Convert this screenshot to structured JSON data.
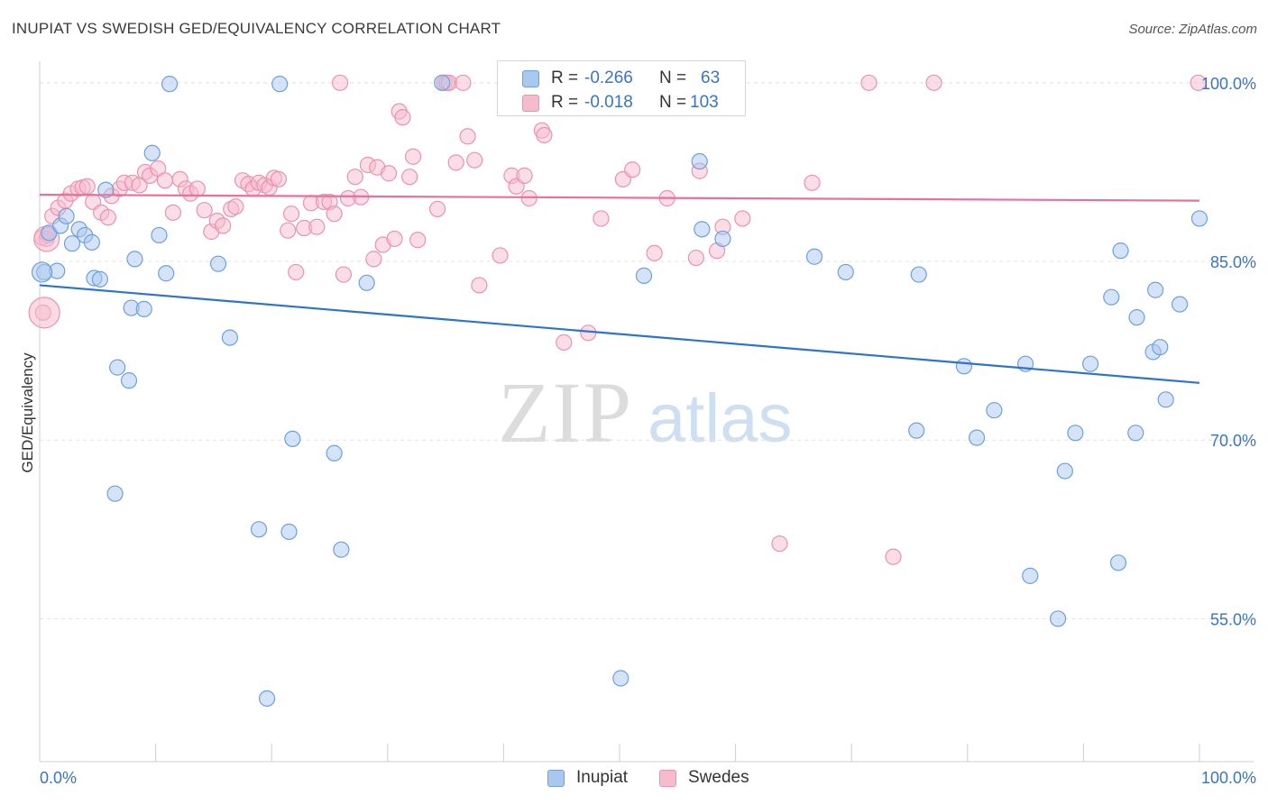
{
  "title": "INUPIAT VS SWEDISH GED/EQUIVALENCY CORRELATION CHART",
  "source": "Source: ZipAtlas.com",
  "watermark": {
    "zip": "ZIP",
    "atlas": "atlas"
  },
  "stats": {
    "r_label": "R =",
    "n_label": "N =",
    "rows": [
      {
        "series": "Inupiat",
        "r": "-0.266",
        "n": "63"
      },
      {
        "series": "Swedes",
        "r": "-0.018",
        "n": "103"
      }
    ]
  },
  "legend": [
    "Inupiat",
    "Swedes"
  ],
  "colors": {
    "inupiat_fill": "#a9c8ef",
    "inupiat_stroke": "#6fa0dd",
    "inupiat_line": "#2f73d0",
    "swedes_fill": "#f6bccd",
    "swedes_stroke": "#eb93ae",
    "swedes_line": "#e8719a",
    "tick_text": "#3b73c4"
  },
  "chart_data": {
    "type": "scatter",
    "title": "INUPIAT VS SWEDISH GED/EQUIVALENCY CORRELATION CHART",
    "xlabel": "",
    "ylabel": "GED/Equivalency",
    "xlim": [
      0,
      100
    ],
    "ylim": [
      43,
      101.5
    ],
    "x_tick_labels": [
      "0.0%",
      "100.0%"
    ],
    "y_ticks": [
      55,
      70,
      85,
      100
    ],
    "y_tick_labels": [
      "55.0%",
      "70.0%",
      "85.0%",
      "100.0%"
    ],
    "grid": "horizontal dashed",
    "legend_position": "bottom-center",
    "series": [
      {
        "name": "Inupiat",
        "r": -0.266,
        "n": 63,
        "trend": [
          [
            0,
            83.0
          ],
          [
            100,
            74.8
          ]
        ],
        "points": [
          [
            0.4,
            84.1
          ],
          [
            0.8,
            87.4
          ],
          [
            1.5,
            84.2
          ],
          [
            1.8,
            88.0
          ],
          [
            2.3,
            88.8
          ],
          [
            2.8,
            86.5
          ],
          [
            3.4,
            87.7
          ],
          [
            3.9,
            87.2
          ],
          [
            4.5,
            86.6
          ],
          [
            4.7,
            83.6
          ],
          [
            5.2,
            83.5
          ],
          [
            5.7,
            91.0
          ],
          [
            6.5,
            65.5
          ],
          [
            6.7,
            76.1
          ],
          [
            7.7,
            75.0
          ],
          [
            7.9,
            81.1
          ],
          [
            8.2,
            85.2
          ],
          [
            9.0,
            81.0
          ],
          [
            9.7,
            94.1
          ],
          [
            10.3,
            87.2
          ],
          [
            10.9,
            84.0
          ],
          [
            11.2,
            99.9
          ],
          [
            15.4,
            84.8
          ],
          [
            16.4,
            78.6
          ],
          [
            18.9,
            62.5
          ],
          [
            19.6,
            48.3
          ],
          [
            20.7,
            99.9
          ],
          [
            21.5,
            62.3
          ],
          [
            21.8,
            70.1
          ],
          [
            25.4,
            68.9
          ],
          [
            26.0,
            60.8
          ],
          [
            28.2,
            83.2
          ],
          [
            34.7,
            100.0
          ],
          [
            45.3,
            100.0
          ],
          [
            50.1,
            50.0
          ],
          [
            52.1,
            83.8
          ],
          [
            56.9,
            93.4
          ],
          [
            57.1,
            87.7
          ],
          [
            58.9,
            86.9
          ],
          [
            66.8,
            85.4
          ],
          [
            69.5,
            84.1
          ],
          [
            75.6,
            70.8
          ],
          [
            75.8,
            83.9
          ],
          [
            79.7,
            76.2
          ],
          [
            80.8,
            70.2
          ],
          [
            82.3,
            72.5
          ],
          [
            85.0,
            76.4
          ],
          [
            85.4,
            58.6
          ],
          [
            87.8,
            55.0
          ],
          [
            88.4,
            67.4
          ],
          [
            89.3,
            70.6
          ],
          [
            90.6,
            76.4
          ],
          [
            92.4,
            82.0
          ],
          [
            93.0,
            59.7
          ],
          [
            93.2,
            85.9
          ],
          [
            94.5,
            70.6
          ],
          [
            94.6,
            80.3
          ],
          [
            96.0,
            77.4
          ],
          [
            96.2,
            82.6
          ],
          [
            96.6,
            77.8
          ],
          [
            97.1,
            73.4
          ],
          [
            98.3,
            81.4
          ],
          [
            100.0,
            88.6
          ]
        ]
      },
      {
        "name": "Swedes",
        "r": -0.018,
        "n": 103,
        "trend": [
          [
            0,
            90.6
          ],
          [
            100,
            90.1
          ]
        ],
        "points": [
          [
            0.2,
            87.0
          ],
          [
            0.3,
            80.7
          ],
          [
            1.1,
            88.8
          ],
          [
            1.6,
            89.5
          ],
          [
            2.2,
            90.1
          ],
          [
            2.7,
            90.7
          ],
          [
            3.3,
            91.1
          ],
          [
            3.7,
            91.2
          ],
          [
            4.1,
            91.3
          ],
          [
            4.6,
            90.0
          ],
          [
            5.3,
            89.1
          ],
          [
            5.9,
            88.7
          ],
          [
            6.2,
            90.5
          ],
          [
            6.9,
            91.1
          ],
          [
            7.3,
            91.6
          ],
          [
            8.0,
            91.6
          ],
          [
            8.6,
            91.4
          ],
          [
            9.1,
            92.5
          ],
          [
            9.5,
            92.2
          ],
          [
            10.2,
            92.8
          ],
          [
            10.8,
            91.8
          ],
          [
            11.5,
            89.1
          ],
          [
            12.1,
            91.9
          ],
          [
            12.6,
            91.1
          ],
          [
            13.0,
            90.7
          ],
          [
            13.6,
            91.1
          ],
          [
            14.2,
            89.3
          ],
          [
            14.8,
            87.5
          ],
          [
            15.3,
            88.4
          ],
          [
            15.8,
            88.0
          ],
          [
            16.5,
            89.4
          ],
          [
            16.9,
            89.6
          ],
          [
            17.5,
            91.8
          ],
          [
            18.0,
            91.5
          ],
          [
            18.4,
            91.1
          ],
          [
            18.9,
            91.6
          ],
          [
            19.4,
            91.4
          ],
          [
            19.8,
            91.2
          ],
          [
            20.2,
            92.0
          ],
          [
            20.6,
            91.9
          ],
          [
            21.4,
            87.6
          ],
          [
            21.7,
            89.0
          ],
          [
            22.1,
            84.1
          ],
          [
            22.8,
            87.8
          ],
          [
            23.4,
            89.9
          ],
          [
            23.9,
            87.9
          ],
          [
            24.5,
            90.0
          ],
          [
            25.0,
            90.0
          ],
          [
            25.4,
            89.0
          ],
          [
            25.9,
            100.0
          ],
          [
            26.2,
            83.9
          ],
          [
            26.6,
            90.3
          ],
          [
            27.2,
            92.1
          ],
          [
            27.7,
            90.4
          ],
          [
            28.3,
            93.1
          ],
          [
            28.8,
            85.2
          ],
          [
            29.1,
            92.9
          ],
          [
            29.6,
            86.4
          ],
          [
            30.1,
            92.4
          ],
          [
            30.6,
            86.9
          ],
          [
            31.0,
            97.6
          ],
          [
            31.3,
            97.1
          ],
          [
            31.9,
            92.1
          ],
          [
            32.2,
            93.8
          ],
          [
            32.6,
            86.8
          ],
          [
            34.3,
            89.4
          ],
          [
            34.9,
            100.0
          ],
          [
            35.1,
            100.0
          ],
          [
            35.3,
            100.0
          ],
          [
            35.9,
            93.3
          ],
          [
            36.5,
            100.0
          ],
          [
            36.9,
            95.5
          ],
          [
            37.5,
            93.5
          ],
          [
            37.9,
            83.0
          ],
          [
            39.7,
            85.5
          ],
          [
            40.7,
            92.2
          ],
          [
            41.1,
            91.3
          ],
          [
            41.8,
            92.2
          ],
          [
            42.2,
            90.3
          ],
          [
            43.3,
            96.0
          ],
          [
            43.5,
            95.6
          ],
          [
            45.2,
            78.2
          ],
          [
            47.1,
            100.0
          ],
          [
            47.3,
            79.0
          ],
          [
            48.2,
            100.0
          ],
          [
            48.4,
            88.6
          ],
          [
            50.3,
            91.9
          ],
          [
            51.1,
            92.7
          ],
          [
            53.0,
            85.7
          ],
          [
            54.1,
            90.3
          ],
          [
            56.6,
            85.3
          ],
          [
            56.9,
            92.6
          ],
          [
            58.4,
            85.9
          ],
          [
            58.9,
            87.9
          ],
          [
            60.6,
            88.6
          ],
          [
            63.8,
            61.3
          ],
          [
            66.6,
            91.6
          ],
          [
            71.5,
            100.0
          ],
          [
            73.6,
            60.2
          ],
          [
            77.1,
            100.0
          ],
          [
            99.9,
            100.0
          ],
          [
            0.6,
            86.9
          ],
          [
            0.7,
            87.2
          ]
        ]
      }
    ]
  }
}
